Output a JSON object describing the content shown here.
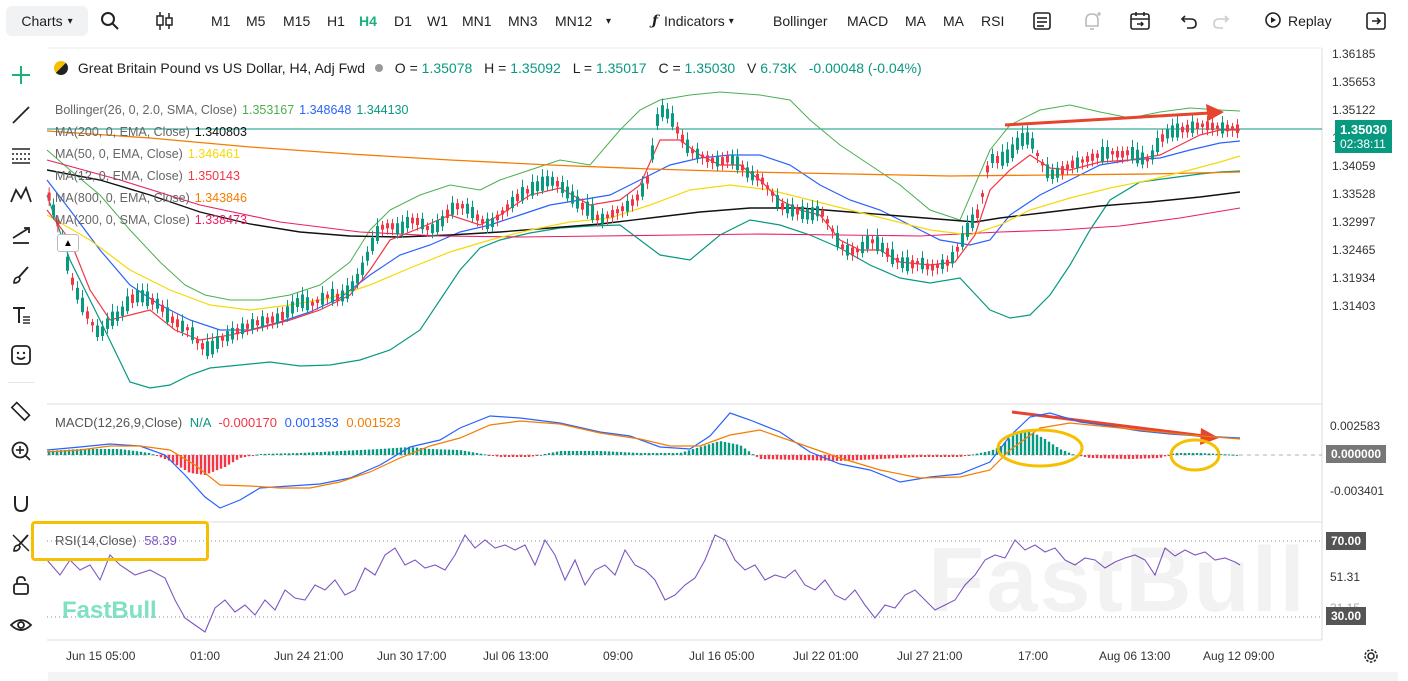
{
  "toolbar": {
    "charts_label": "Charts",
    "timeframes": [
      "M1",
      "M5",
      "M15",
      "H1",
      "H4",
      "D1",
      "W1",
      "MN1",
      "MN3",
      "MN12"
    ],
    "active_timeframe": "H4",
    "indicators_label": "Indicators",
    "indicator_shortcuts": [
      "Bollinger",
      "MACD",
      "MA",
      "MA",
      "RSI"
    ],
    "replay_label": "Replay"
  },
  "symbol": {
    "name": "Great Britain Pound vs US Dollar, H4, Adj Fwd",
    "open_label": "O =",
    "open": "1.35078",
    "high_label": "H =",
    "high": "1.35092",
    "low_label": "L =",
    "low": "1.35017",
    "close_label": "C =",
    "close": "1.35030",
    "volume_label": "V",
    "volume": "6.73K",
    "change": "-0.00048 (-0.04%)"
  },
  "overlays": [
    {
      "label": "Bollinger(26, 0, 2.0, SMA, Close)",
      "values": [
        "1.353167",
        "1.348648",
        "1.344130"
      ],
      "colors": [
        "#4caf50",
        "#2962ff",
        "#089981"
      ]
    },
    {
      "label": "MA(200, 0, EMA, Close)",
      "values": [
        "1.340803"
      ],
      "colors": [
        "#111111"
      ]
    },
    {
      "label": "MA(50, 0, EMA, Close)",
      "values": [
        "1.346461"
      ],
      "colors": [
        "#f5d90a"
      ]
    },
    {
      "label": "MA(12, 0, EMA, Close)",
      "values": [
        "1.350143"
      ],
      "colors": [
        "#f23645"
      ]
    },
    {
      "label": "MA(800, 0, EMA, Close)",
      "values": [
        "1.343846"
      ],
      "colors": [
        "#f57c00"
      ]
    },
    {
      "label": "MA(200, 0, SMA, Close)",
      "values": [
        "1.338473"
      ],
      "colors": [
        "#e91e63"
      ]
    }
  ],
  "price_axis": [
    "1.36185",
    "1.35653",
    "1.35122",
    "1.34591",
    "1.34059",
    "1.33528",
    "1.32997",
    "1.32465",
    "1.31934",
    "1.31403"
  ],
  "current_price": "1.35030",
  "countdown": "02:38:11",
  "macd": {
    "label": "MACD(12,26,9,Close)",
    "values": [
      "N/A",
      "-0.000170",
      "0.001353",
      "0.001523"
    ],
    "colors": [
      "#089981",
      "#f23645",
      "#2962ff",
      "#f57c00"
    ],
    "axis": [
      "0.002583",
      "0.000000",
      "-0.003401"
    ],
    "zero_badge": "0.000000"
  },
  "rsi": {
    "label": "RSI(14,Close)",
    "value": "58.39",
    "axis_mid": "51.31",
    "upper": "70.00",
    "lower": "30.00",
    "lower_hidden": "31.15"
  },
  "x_axis": [
    "Jun 15 05:00",
    "01:00",
    "Jun 24 21:00",
    "Jun 30 17:00",
    "Jul 06 13:00",
    "09:00",
    "Jul 16 05:00",
    "Jul 22 01:00",
    "Jul 27 21:00",
    "17:00",
    "Aug 06 13:00",
    "Aug 12 09:00"
  ],
  "watermark": "FastBull",
  "colors": {
    "up": "#089981",
    "down": "#f23645",
    "accent": "#19b37a",
    "annotation": "#f5c000",
    "arrow": "#e8432d"
  }
}
